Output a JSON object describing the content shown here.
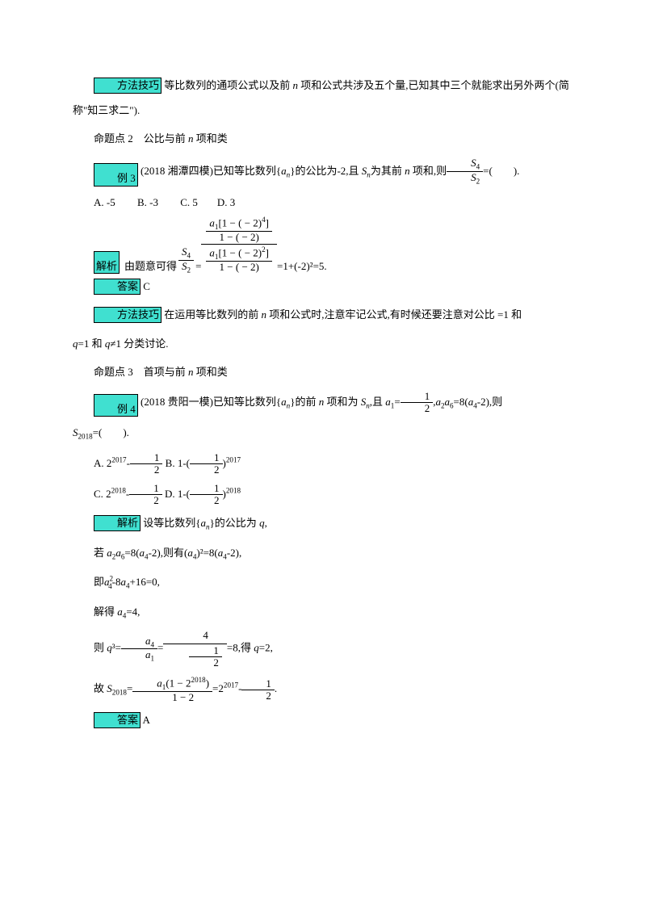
{
  "p1": {
    "tag": "方法技巧",
    "text_a": " 等比数列的通项公式以及前 ",
    "n": "n",
    "text_b": " 项和公式共涉及五个量,已知其中三个就能求出另外两个(简称\"知三求二\")."
  },
  "p2": {
    "text_a": "命题点 2　公比与前 ",
    "n": "n",
    "text_b": " 项和类"
  },
  "ex3": {
    "tag": "例 3",
    "text_a": " (2018 湘潭四模)已知等比数列{",
    "an": "a",
    "text_b": "}的公比为-2,且 ",
    "sn": "S",
    "text_c": "为其前 ",
    "n": "n",
    "text_d": " 项和,则",
    "frac_num": "S",
    "frac_num_sub": "4",
    "frac_den": "S",
    "frac_den_sub": "2",
    "text_e": "=(　　)."
  },
  "opts3": {
    "a": "A. -5",
    "b": "B. -3",
    "c": "C. 5",
    "d": "D. 3"
  },
  "sol3": {
    "tag": "解析",
    "text_a": "由题意可得",
    "s4": "S",
    "s4sub": "4",
    "s2": "S",
    "s2sub": "2",
    "eq": "=",
    "num1": "a",
    "num1exp": "1[1 − ( − 2)⁴]",
    "den1": "1 − ( − 2)",
    "num2": "a",
    "num2exp": "1[1 − ( − 2)²]",
    "den2": "1 − ( − 2)",
    "text_b": "=1+(-2)²=5."
  },
  "ans3": {
    "tag": "答案",
    "val": " C"
  },
  "tip2": {
    "tag": "方法技巧",
    "text_a": " 在运用等比数列的前 ",
    "n": "n",
    "text_b": " 项和公式时,注意牢记公式,有时候还要注意对公比 =1 和 ",
    "q": "q",
    "q2": "q",
    "text_c": "≠1 分类讨论."
  },
  "p3": {
    "text_a": "命题点 3　首项与前 ",
    "n": "n",
    "text_b": " 项和类"
  },
  "ex4": {
    "tag": "例 4",
    "text_a": " (2018 贵阳一模)已知等比数列{",
    "an": "a",
    "text_b": "}的前 ",
    "n": "n",
    "text_c": " 项和为 ",
    "sn": "S",
    "text_d": ",且 ",
    "a1": "a",
    "eq1": "=",
    "half_num": "1",
    "half_den": "2",
    "text_e": ",",
    "a2a6": "a",
    "text_f": "=8(",
    "a4": "a",
    "text_g": "-2),则 ",
    "s2018": "S",
    "text_h": "=(　　)."
  },
  "opts4": {
    "a_pre": "A. 2",
    "a_exp": "2017",
    "a_mid": "-",
    "a_hn": "1",
    "a_hd": "2",
    "b_pre": "B. 1-",
    "b_pn": "1",
    "b_pd": "2",
    "b_exp": "2017",
    "c_pre": "C. 2",
    "c_exp": "2018",
    "c_mid": "-",
    "c_hn": "1",
    "c_hd": "2",
    "d_pre": "D. 1-",
    "d_pn": "1",
    "d_pd": "2",
    "d_exp": "2018"
  },
  "sol4": {
    "tag": "解析",
    "l1a": " 设等比数列{",
    "l1an": "a",
    "l1b": "}的公比为 ",
    "l1q": "q",
    "l1c": ",",
    "l2a": "若 ",
    "l2a2": "a",
    "l2a6": "a",
    "l2b": "=8(",
    "l2a4": "a",
    "l2c": "-2),则有(",
    "l2a4b": "a",
    "l2d": ")²=8(",
    "l2a4c": "a",
    "l2e": "-2),",
    "l3a": "即",
    "l3a4": "a",
    "l3b": "-8",
    "l3a4b": "a",
    "l3c": "+16=0,",
    "l4a": "解得 ",
    "l4a4": "a",
    "l4b": "=4,",
    "l5a": "则 ",
    "l5q": "q",
    "l5b": "³=",
    "l5a4n": "a",
    "l5a1d": "a",
    "l5eq": "=",
    "l5n4": "4",
    "l5d1n": "1",
    "l5d1d": "2",
    "l5c": "=8,得 ",
    "l5q2": "q",
    "l5d": "=2,",
    "l6a": "故 ",
    "l6s": "S",
    "l6b": "=",
    "l6num": "a₁(1 − 2²⁰¹⁸)",
    "l6den": "1 − 2",
    "l6c": "=2",
    "l6exp": "2017",
    "l6d": "-",
    "l6hn": "1",
    "l6hd": "2",
    "l6e": "."
  },
  "ans4": {
    "tag": "答案",
    "val": " A"
  },
  "colors": {
    "highlight": "#40e0d0",
    "text": "#000000",
    "bg": "#ffffff"
  }
}
